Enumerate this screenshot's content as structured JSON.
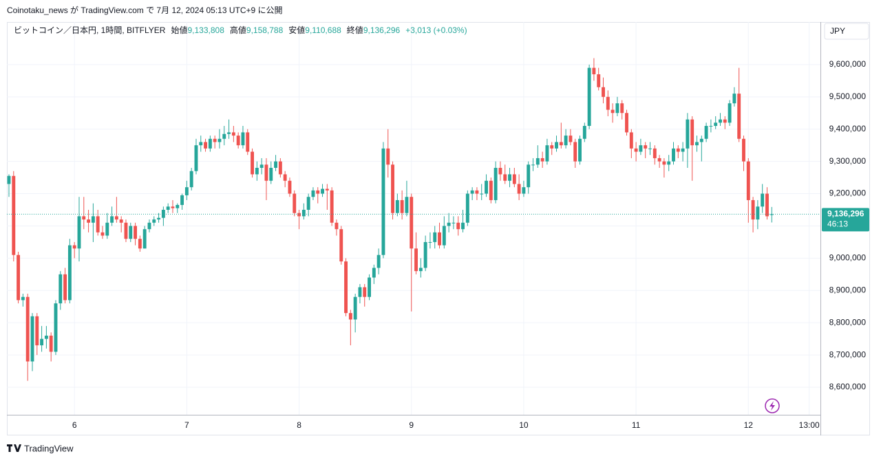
{
  "header": "Coinotaku_news が TradingView.com で 7月 12, 2024 05:13 UTC+9 に公開",
  "footer": "TradingView",
  "currency_button": "JPY",
  "chart_data": {
    "type": "candlestick",
    "legend": {
      "symbol": "ビットコイン／日本円, 1時間, BITFLYER",
      "items": [
        {
          "name": "始値",
          "value": "9,133,808"
        },
        {
          "name": "高値",
          "value": "9,158,788"
        },
        {
          "name": "安値",
          "value": "9,110,688"
        },
        {
          "name": "終値",
          "value": "9,136,296"
        }
      ],
      "change": "+3,013 (+0.03%)"
    },
    "up_color": "#26a69a",
    "down_color": "#ef5350",
    "grid": true,
    "last_price": {
      "value": 9136296,
      "label": "9,136,296"
    },
    "countdown": "46:13",
    "ylim": [
      8514700,
      9732000
    ],
    "yticks": [
      {
        "value": 8600000,
        "label": "8,600,000"
      },
      {
        "value": 8700000,
        "label": "8,700,000"
      },
      {
        "value": 8800000,
        "label": "8,800,000"
      },
      {
        "value": 8900000,
        "label": "8,900,000"
      },
      {
        "value": 9000000,
        "label": "9,000,000"
      },
      {
        "value": 9100000,
        "label": "9,100,000"
      },
      {
        "value": 9200000,
        "label": "9,200,000"
      },
      {
        "value": 9300000,
        "label": "9,300,000"
      },
      {
        "value": 9400000,
        "label": "9,400,000"
      },
      {
        "value": 9500000,
        "label": "9,500,000"
      },
      {
        "value": 9600000,
        "label": "9,600,000"
      }
    ],
    "xlim": [
      -0.44,
      173.4
    ],
    "xticks": [
      {
        "value": 14,
        "label": "6"
      },
      {
        "value": 38,
        "label": "7"
      },
      {
        "value": 62,
        "label": "8"
      },
      {
        "value": 86,
        "label": "9"
      },
      {
        "value": 110,
        "label": "10"
      },
      {
        "value": 134,
        "label": "11"
      },
      {
        "value": 158,
        "label": "12"
      },
      {
        "value": 171,
        "label": "13:00"
      }
    ],
    "open": [
      9230000,
      9255000,
      9010000,
      8870000,
      8880000,
      8680000,
      8820000,
      8730000,
      8750000,
      8760000,
      8710000,
      8860000,
      8950000,
      8870000,
      9040000,
      9030000,
      9130000,
      9120000,
      9110000,
      9130000,
      9080000,
      9070000,
      9110000,
      9130000,
      9120000,
      9110000,
      9060000,
      9100000,
      9060000,
      9030000,
      9090000,
      9110000,
      9120000,
      9125000,
      9150000,
      9160000,
      9155000,
      9165000,
      9195000,
      9220000,
      9270000,
      9350000,
      9360000,
      9340000,
      9370000,
      9360000,
      9370000,
      9385000,
      9390000,
      9380000,
      9350000,
      9390000,
      9330000,
      9260000,
      9280000,
      9290000,
      9240000,
      9280000,
      9300000,
      9260000,
      9240000,
      9200000,
      9140000,
      9130000,
      9150000,
      9190000,
      9210000,
      9200000,
      9215000,
      9210000,
      9110000,
      9090000,
      8990000,
      8830000,
      8810000,
      8880000,
      8910000,
      8880000,
      8940000,
      8970000,
      9010000,
      9340000,
      9290000,
      9140000,
      9180000,
      9140000,
      9190000,
      9030000,
      8960000,
      8970000,
      9050000,
      9050000,
      9080000,
      9040000,
      9100000,
      9110000,
      9110000,
      9090000,
      9110000,
      9200000,
      9210000,
      9200000,
      9200000,
      9240000,
      9180000,
      9280000,
      9260000,
      9240000,
      9260000,
      9230000,
      9200000,
      9220000,
      9290000,
      9290000,
      9310000,
      9300000,
      9350000,
      9340000,
      9360000,
      9350000,
      9380000,
      9360000,
      9300000,
      9370000,
      9410000,
      9590000,
      9570000,
      9530000,
      9500000,
      9460000,
      9450000,
      9480000,
      9450000,
      9390000,
      9340000,
      9330000,
      9350000,
      9340000,
      9340000,
      9310000,
      9300000,
      9290000,
      9300000,
      9340000,
      9330000,
      9340000,
      9430000,
      9350000,
      9360000,
      9370000,
      9410000,
      9410000,
      9420000,
      9430000,
      9420000,
      9480000,
      9510000,
      9370000,
      9300000,
      9180000,
      9120000,
      9160000,
      9200000,
      9133808
    ],
    "high": [
      9260000,
      9270000,
      9020000,
      8890000,
      8890000,
      8830000,
      8830000,
      8790000,
      8790000,
      8770000,
      8870000,
      8960000,
      8970000,
      9060000,
      9050000,
      9190000,
      9190000,
      9150000,
      9170000,
      9150000,
      9100000,
      9140000,
      9160000,
      9190000,
      9130000,
      9120000,
      9110000,
      9110000,
      9070000,
      9100000,
      9120000,
      9130000,
      9140000,
      9160000,
      9170000,
      9180000,
      9170000,
      9200000,
      9240000,
      9280000,
      9370000,
      9380000,
      9370000,
      9380000,
      9380000,
      9400000,
      9410000,
      9430000,
      9410000,
      9390000,
      9410000,
      9400000,
      9340000,
      9300000,
      9310000,
      9310000,
      9300000,
      9320000,
      9310000,
      9270000,
      9250000,
      9210000,
      9150000,
      9170000,
      9200000,
      9220000,
      9220000,
      9230000,
      9230000,
      9220000,
      9120000,
      9100000,
      9000000,
      8840000,
      8890000,
      8920000,
      8920000,
      8950000,
      8980000,
      9030000,
      9360000,
      9400000,
      9300000,
      9200000,
      9210000,
      9240000,
      9200000,
      9080000,
      9000000,
      9070000,
      9080000,
      9100000,
      9110000,
      9130000,
      9140000,
      9130000,
      9130000,
      9150000,
      9210000,
      9220000,
      9220000,
      9230000,
      9260000,
      9250000,
      9300000,
      9300000,
      9290000,
      9280000,
      9280000,
      9260000,
      9240000,
      9300000,
      9310000,
      9350000,
      9330000,
      9370000,
      9360000,
      9380000,
      9420000,
      9400000,
      9400000,
      9370000,
      9380000,
      9420000,
      9600000,
      9620000,
      9590000,
      9560000,
      9520000,
      9480000,
      9500000,
      9490000,
      9460000,
      9400000,
      9360000,
      9370000,
      9360000,
      9360000,
      9350000,
      9320000,
      9310000,
      9320000,
      9360000,
      9350000,
      9360000,
      9450000,
      9440000,
      9380000,
      9380000,
      9420000,
      9430000,
      9440000,
      9450000,
      9440000,
      9490000,
      9530000,
      9590000,
      9380000,
      9310000,
      9190000,
      9180000,
      9230000,
      9220000,
      9158788
    ],
    "low": [
      9190000,
      8990000,
      8860000,
      8850000,
      8620000,
      8650000,
      8700000,
      8710000,
      8720000,
      8680000,
      8700000,
      8840000,
      8860000,
      8860000,
      9000000,
      8990000,
      9090000,
      9080000,
      9050000,
      9070000,
      9060000,
      9060000,
      9100000,
      9110000,
      9080000,
      9050000,
      9050000,
      9040000,
      9020000,
      9030000,
      9080000,
      9100000,
      9110000,
      9100000,
      9140000,
      9140000,
      9140000,
      9150000,
      9180000,
      9210000,
      9260000,
      9330000,
      9330000,
      9330000,
      9340000,
      9340000,
      9350000,
      9370000,
      9360000,
      9340000,
      9340000,
      9320000,
      9250000,
      9240000,
      9260000,
      9180000,
      9230000,
      9270000,
      9250000,
      9220000,
      9190000,
      9130000,
      9090000,
      9120000,
      9130000,
      9180000,
      9170000,
      9190000,
      9150000,
      9100000,
      9070000,
      8980000,
      8820000,
      8730000,
      8770000,
      8860000,
      8850000,
      8870000,
      8920000,
      8950000,
      9000000,
      9250000,
      9120000,
      9130000,
      9120000,
      9130000,
      8835000,
      8950000,
      8940000,
      8960000,
      9030000,
      9030000,
      9030000,
      9030000,
      9080000,
      9090000,
      9070000,
      9080000,
      9100000,
      9180000,
      9180000,
      9180000,
      9190000,
      9170000,
      9170000,
      9240000,
      9230000,
      9220000,
      9220000,
      9180000,
      9190000,
      9200000,
      9270000,
      9280000,
      9280000,
      9290000,
      9320000,
      9330000,
      9340000,
      9340000,
      9350000,
      9280000,
      9290000,
      9360000,
      9400000,
      9550000,
      9520000,
      9480000,
      9440000,
      9420000,
      9440000,
      9430000,
      9380000,
      9310000,
      9300000,
      9320000,
      9310000,
      9320000,
      9290000,
      9280000,
      9250000,
      9270000,
      9290000,
      9310000,
      9300000,
      9280000,
      9240000,
      9330000,
      9300000,
      9360000,
      9390000,
      9400000,
      9410000,
      9400000,
      9410000,
      9470000,
      9360000,
      9270000,
      9110000,
      9080000,
      9090000,
      9140000,
      9120000,
      9110688
    ],
    "close": [
      9255000,
      9010000,
      8870000,
      8880000,
      8680000,
      8820000,
      8730000,
      8750000,
      8760000,
      8710000,
      8860000,
      8950000,
      8870000,
      9040000,
      9030000,
      9130000,
      9120000,
      9110000,
      9130000,
      9080000,
      9070000,
      9110000,
      9130000,
      9120000,
      9110000,
      9060000,
      9100000,
      9060000,
      9030000,
      9090000,
      9110000,
      9120000,
      9125000,
      9150000,
      9160000,
      9155000,
      9165000,
      9195000,
      9220000,
      9270000,
      9350000,
      9360000,
      9340000,
      9370000,
      9360000,
      9370000,
      9385000,
      9390000,
      9380000,
      9350000,
      9390000,
      9330000,
      9260000,
      9280000,
      9290000,
      9240000,
      9280000,
      9300000,
      9260000,
      9240000,
      9200000,
      9140000,
      9130000,
      9150000,
      9190000,
      9210000,
      9200000,
      9215000,
      9210000,
      9110000,
      9090000,
      8990000,
      8830000,
      8810000,
      8880000,
      8910000,
      8880000,
      8940000,
      8970000,
      9010000,
      9340000,
      9290000,
      9140000,
      9180000,
      9140000,
      9190000,
      9030000,
      8960000,
      8970000,
      9050000,
      9050000,
      9080000,
      9040000,
      9100000,
      9110000,
      9110000,
      9090000,
      9110000,
      9200000,
      9210000,
      9200000,
      9200000,
      9240000,
      9180000,
      9280000,
      9260000,
      9240000,
      9260000,
      9230000,
      9200000,
      9220000,
      9290000,
      9290000,
      9310000,
      9300000,
      9350000,
      9340000,
      9360000,
      9350000,
      9380000,
      9360000,
      9300000,
      9370000,
      9410000,
      9590000,
      9570000,
      9530000,
      9500000,
      9460000,
      9450000,
      9480000,
      9450000,
      9390000,
      9340000,
      9330000,
      9350000,
      9340000,
      9340000,
      9310000,
      9300000,
      9290000,
      9300000,
      9340000,
      9330000,
      9340000,
      9430000,
      9350000,
      9360000,
      9370000,
      9410000,
      9410000,
      9420000,
      9430000,
      9420000,
      9480000,
      9510000,
      9370000,
      9300000,
      9180000,
      9120000,
      9160000,
      9200000,
      9130000,
      9136296
    ]
  }
}
